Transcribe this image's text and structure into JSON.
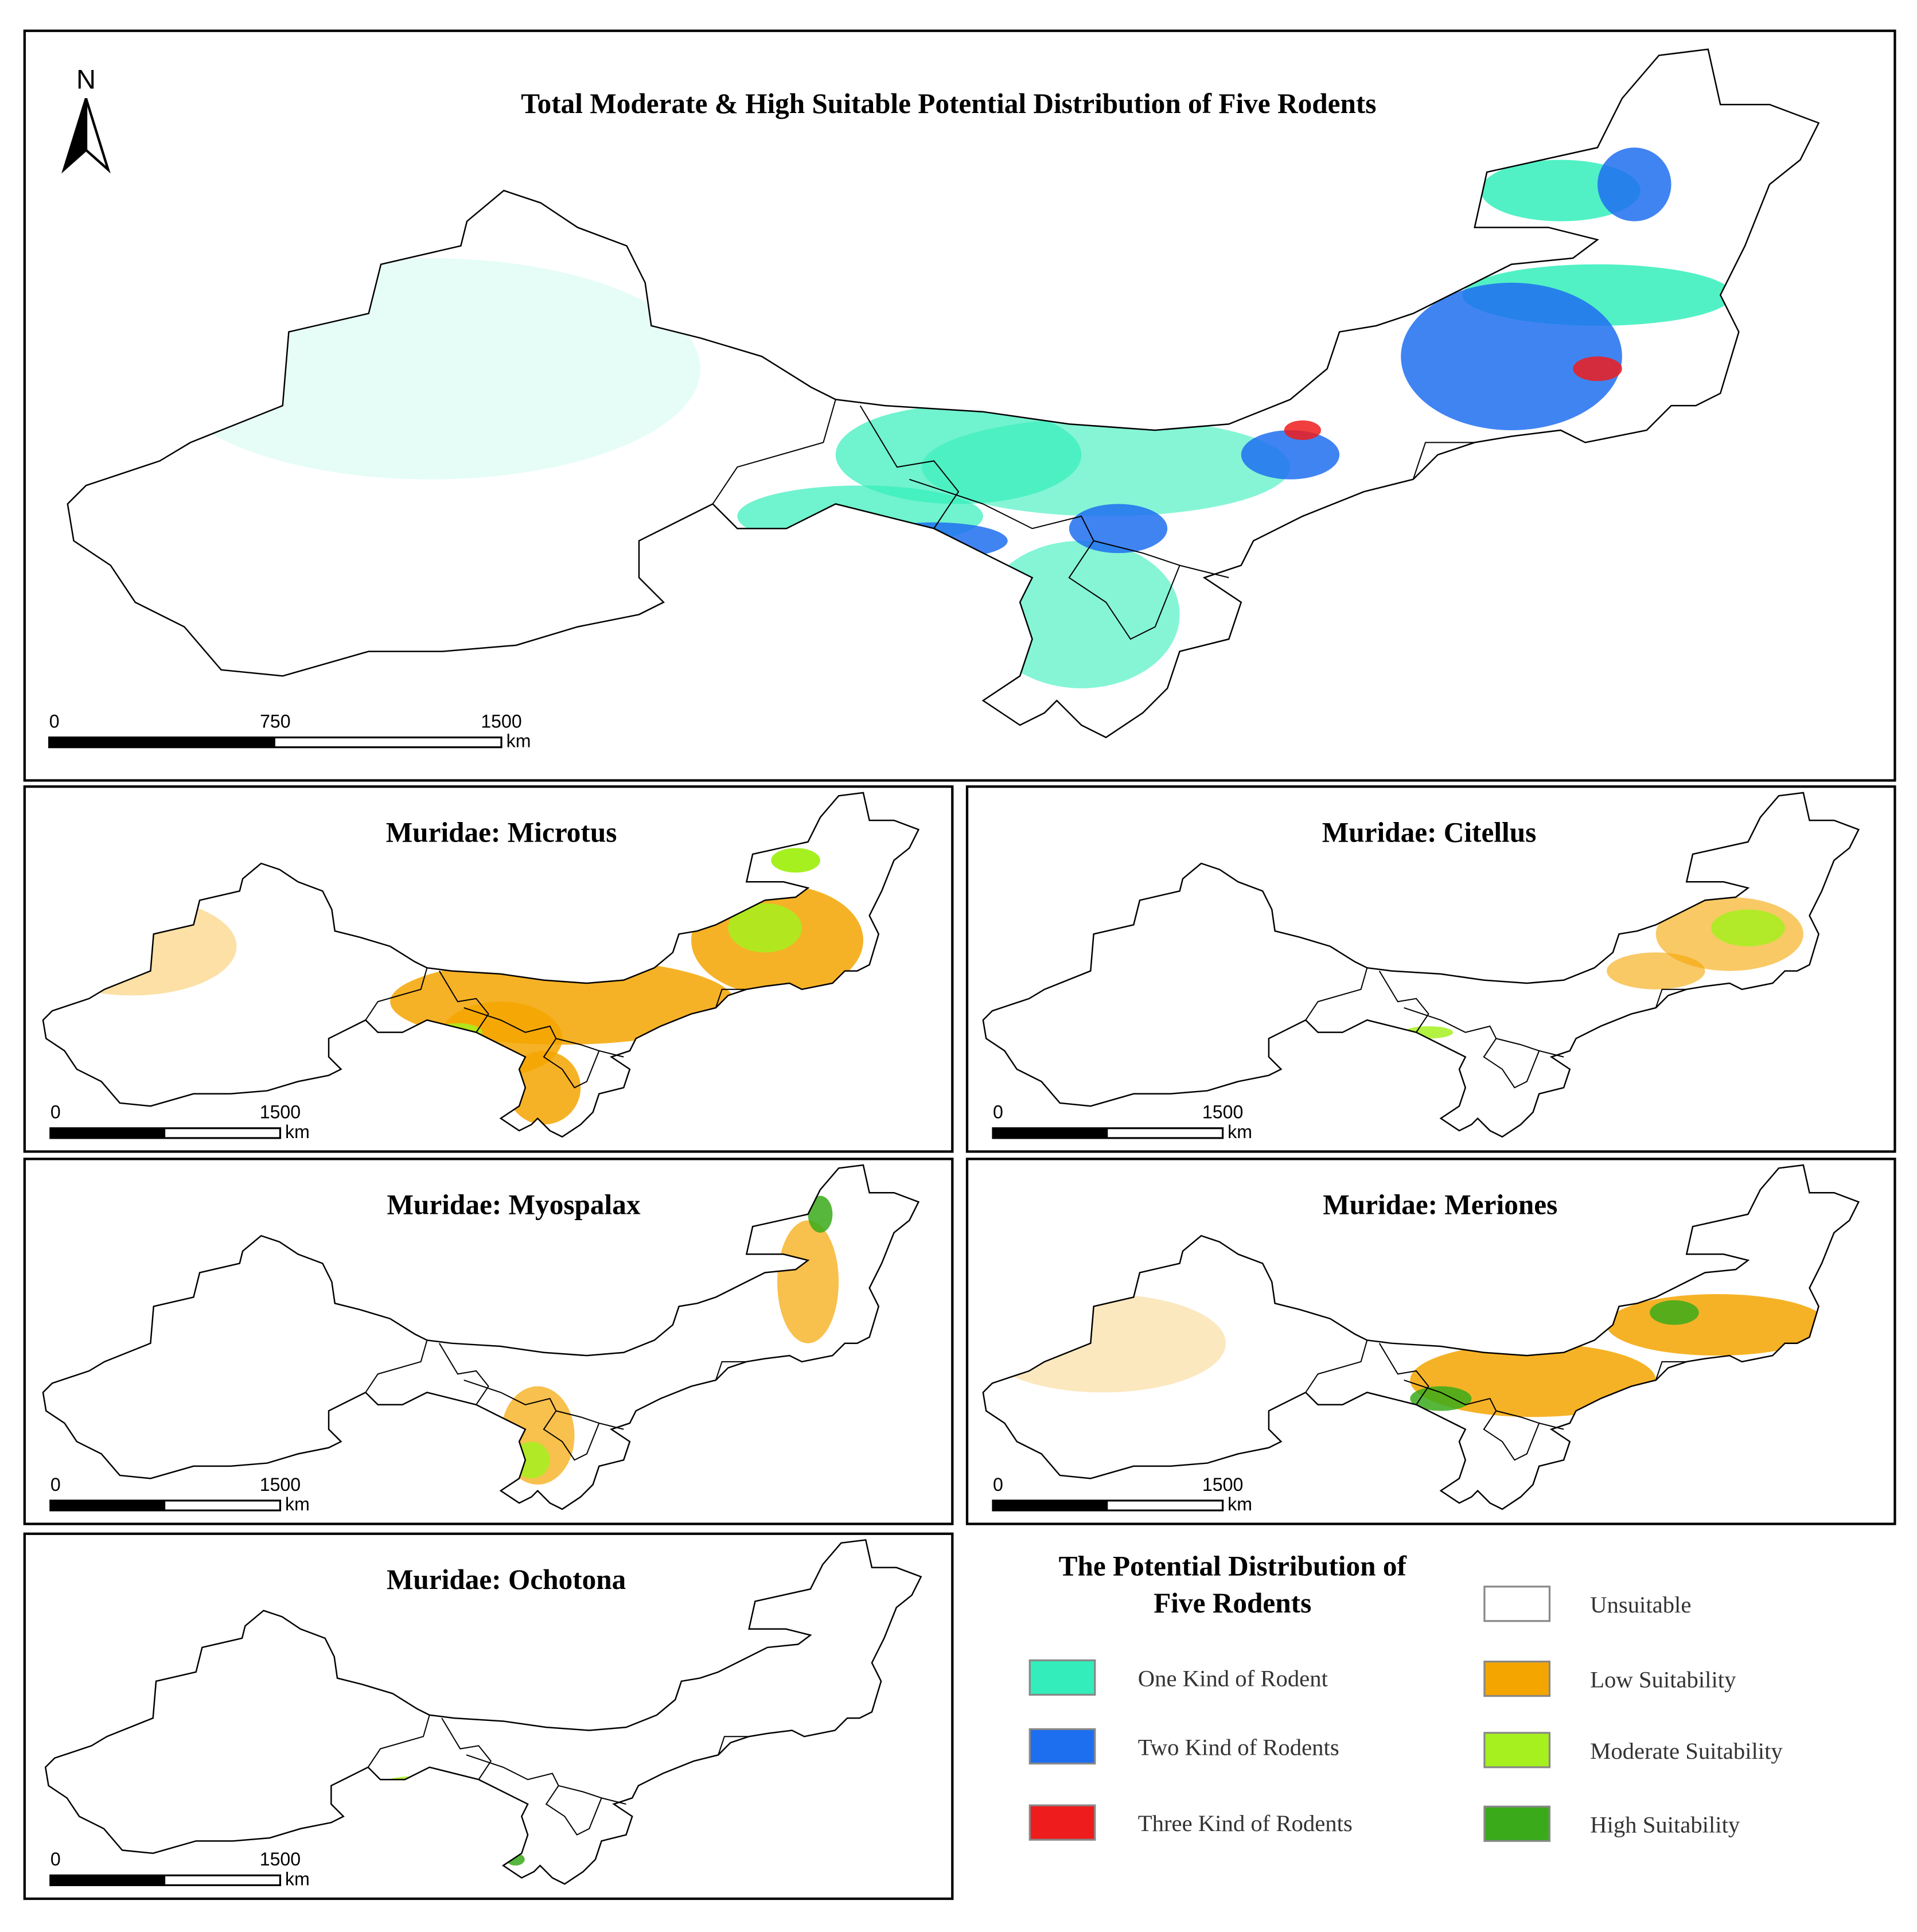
{
  "north_arrow": "N",
  "main_panel": {
    "title": "Total Moderate & High Suitable Potential Distribution of Five Rodents",
    "scale_bar": {
      "labels": [
        "0",
        "750",
        "1500"
      ],
      "unit": "km"
    }
  },
  "panels": [
    {
      "title": "Muridae: Microtus",
      "scale_bar": {
        "labels": [
          "0",
          "1500"
        ],
        "unit": "km"
      }
    },
    {
      "title": "Muridae: Citellus",
      "scale_bar": {
        "labels": [
          "0",
          "1500"
        ],
        "unit": "km"
      }
    },
    {
      "title": "Muridae: Myospalax",
      "scale_bar": {
        "labels": [
          "0",
          "1500"
        ],
        "unit": "km"
      }
    },
    {
      "title": "Muridae: Meriones",
      "scale_bar": {
        "labels": [
          "0",
          "1500"
        ],
        "unit": "km"
      }
    },
    {
      "title": "Muridae: Ochotona",
      "scale_bar": {
        "labels": [
          "0",
          "1500"
        ],
        "unit": "km"
      }
    }
  ],
  "legend": {
    "title_lines": [
      "The Potential Distribution of",
      "Five Rodents"
    ],
    "items": [
      {
        "label": "One Kind of Rodent",
        "color": "#33eebb"
      },
      {
        "label": "Two Kind of Rodents",
        "color": "#1e6ef0"
      },
      {
        "label": "Three Kind of Rodents",
        "color": "#ee1c1c"
      },
      {
        "label": "Unsuitable",
        "color": "#ffffff"
      },
      {
        "label": "Low Suitability",
        "color": "#f5a500"
      },
      {
        "label": "Moderate Suitability",
        "color": "#a6f020"
      },
      {
        "label": "High Suitability",
        "color": "#3aaa1a"
      }
    ]
  }
}
